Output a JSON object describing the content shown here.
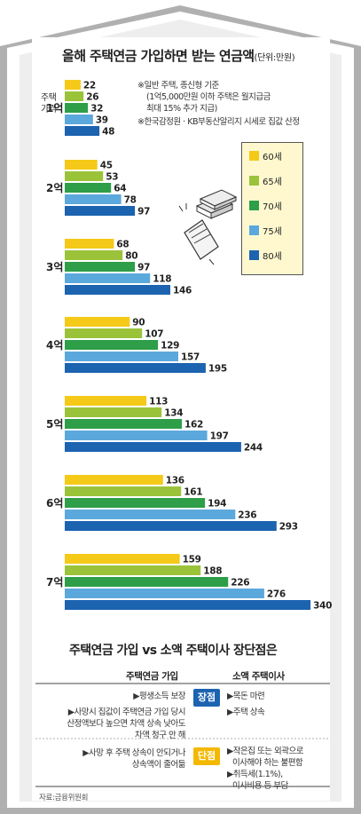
{
  "header": {
    "title": "올해 주택연금 가입하면 받는 연금액",
    "unit": "(단위:만원)"
  },
  "notes": [
    "※일반 주택, 종신형 기준",
    "(1억5,000만원 이하 주택은 월지급금",
    "최대 15% 추가 지급)",
    "※한국감정원 · KB부동산알리지 시세로 집값 산정"
  ],
  "row_header": [
    "주택",
    "가격"
  ],
  "chart_data": {
    "type": "bar",
    "orientation": "horizontal",
    "categories": [
      "1억",
      "2억",
      "3억",
      "4억",
      "5억",
      "6억",
      "7억"
    ],
    "series": [
      {
        "name": "60세",
        "color": "#f5c918",
        "values": [
          22,
          45,
          68,
          90,
          113,
          136,
          159
        ]
      },
      {
        "name": "65세",
        "color": "#9bc33a",
        "values": [
          26,
          53,
          80,
          107,
          134,
          161,
          188
        ]
      },
      {
        "name": "70세",
        "color": "#2e9e48",
        "values": [
          32,
          64,
          97,
          129,
          162,
          194,
          226
        ]
      },
      {
        "name": "75세",
        "color": "#5ba8dc",
        "values": [
          39,
          78,
          118,
          157,
          197,
          236,
          276
        ]
      },
      {
        "name": "80세",
        "color": "#1c63b0",
        "values": [
          48,
          97,
          146,
          195,
          244,
          293,
          340
        ]
      }
    ],
    "legend_position": "right"
  },
  "comparison": {
    "title": "주택연금 가입 vs 소액 주택이사 장단점은",
    "left_header": "주택연금 가입",
    "right_header": "소액 주택이사",
    "pros_label": "장점",
    "cons_label": "단점",
    "pros_left": [
      "▶평생소득 보장",
      "▶사망시 집값이 주택연금 가입 당시",
      "산정액보다 높으면 차액 상속 낮아도",
      "차액 청구 안 해"
    ],
    "pros_right": [
      "▶목돈 마련",
      "▶주택 상속"
    ],
    "cons_left": [
      "▶사망 후 주택 상속이 안되거나",
      "상속액이 줄어듦"
    ],
    "cons_right": [
      "▶작은집 또는 외곽으로",
      "이사해야 하는 불편함",
      "▶취득세(1.1%),",
      "이사비용 등 부담"
    ],
    "badge_pros_color": "#1c63b0",
    "badge_cons_color": "#f5b800"
  },
  "source": "자료:금융위원회"
}
